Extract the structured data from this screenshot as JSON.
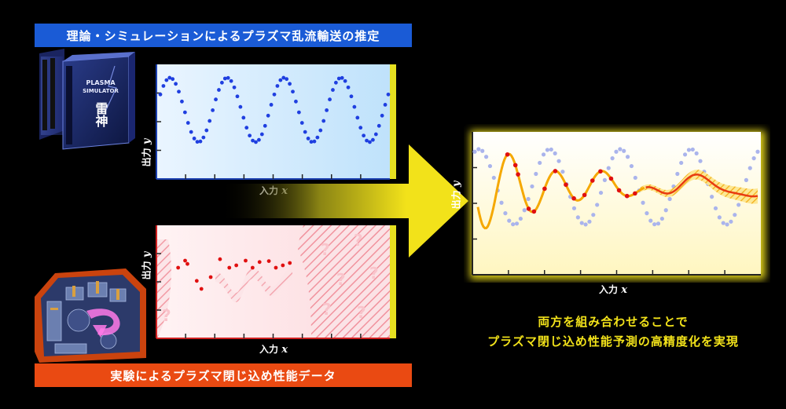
{
  "top_banner": {
    "text": "理論・シミュレーションによるプラズマ乱流輸送の推定",
    "color": "#1a5bd6"
  },
  "bottom_banner": {
    "text": "実験によるプラズマ閉じ込め性能データ",
    "color": "#ea4a12"
  },
  "supercomputer": {
    "label_line1": "PLASMA",
    "label_line2": "SIMULATOR",
    "label_kanji": "雷神",
    "icon": "supercomputer-icon"
  },
  "tokamak": {
    "icon": "tokamak-reactor-icon"
  },
  "charts": {
    "simulation": {
      "ylabel": "出力",
      "ylabel_var": "y",
      "xlabel": "入力",
      "xlabel_var": "x"
    },
    "experiment": {
      "ylabel": "出力",
      "ylabel_var": "y",
      "xlabel": "入力",
      "xlabel_var": "x",
      "unknown_mark": "?"
    },
    "combined": {
      "ylabel": "出力",
      "ylabel_var": "y",
      "xlabel": "入力",
      "xlabel_var": "x"
    }
  },
  "caption": {
    "line1": "両方を組み合わせることで",
    "line2": "プラズマ閉じ込め性能予測の高精度化を実現"
  },
  "colors": {
    "sim_points": "#1f3fe0",
    "exp_points": "#e01010",
    "prediction": "#f5a800",
    "arrow": "#f2e21a"
  },
  "chart_data": [
    {
      "type": "scatter",
      "series": [
        {
          "values_shape": "sinusoid",
          "cycles": 4
        }
      ]
    },
    {
      "type": "scatter",
      "series": [
        {
          "x": [
            0.09,
            0.12,
            0.13,
            0.17,
            0.19,
            0.23,
            0.27,
            0.31,
            0.34,
            0.38,
            0.41,
            0.44,
            0.48,
            0.51,
            0.54,
            0.57
          ],
          "y": [
            0.4,
            0.55,
            0.48,
            0.12,
            -0.05,
            0.2,
            0.58,
            0.4,
            0.45,
            0.55,
            0.4,
            0.52,
            0.54,
            0.4,
            0.45,
            0.5
          ]
        }
      ]
    },
    {
      "type": "line"
    }
  ]
}
